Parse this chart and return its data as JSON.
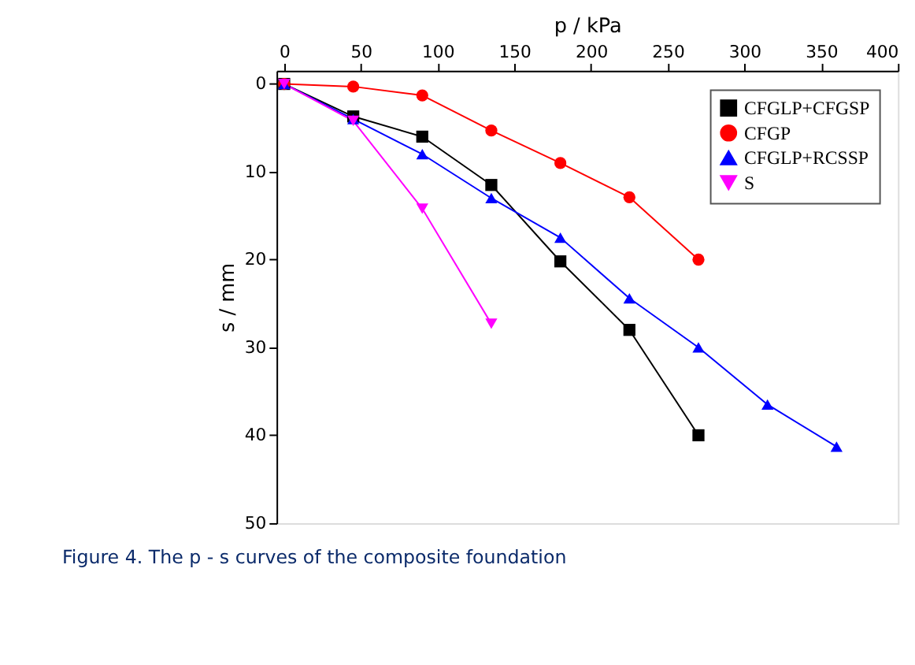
{
  "chart_data": {
    "type": "line",
    "xlabel": "p / kPa",
    "ylabel": "s / mm",
    "xlim": [
      -5,
      400
    ],
    "xticks": [
      0,
      50,
      100,
      150,
      200,
      250,
      300,
      350,
      400
    ],
    "ylim": [
      50,
      -1.5
    ],
    "yticks": [
      0,
      10,
      20,
      30,
      40,
      50
    ],
    "grid": false,
    "legend": "top right",
    "line_style": "solid",
    "annotations": [
      "Figure 4. The p - s curves of the composite foundation"
    ],
    "series": [
      {
        "name": "CFGLP+CFGSP",
        "color": "#000000",
        "marker": "square",
        "x": [
          0,
          45,
          90,
          135,
          180,
          225,
          270
        ],
        "values": [
          0,
          3.7,
          6,
          11.5,
          20.2,
          28,
          40
        ]
      },
      {
        "name": "CFGP",
        "color": "#ff0000",
        "marker": "circle",
        "x": [
          0,
          45,
          90,
          135,
          180,
          225,
          270
        ],
        "values": [
          0,
          0.3,
          1.3,
          5.3,
          9,
          12.9,
          20
        ]
      },
      {
        "name": "CFGLP+RCSSP",
        "color": "#0000ff",
        "marker": "triangle",
        "x": [
          0,
          45,
          90,
          135,
          180,
          225,
          270,
          315,
          360
        ],
        "values": [
          0,
          4,
          8,
          13,
          17.5,
          24.4,
          30,
          36.5,
          41.3
        ]
      },
      {
        "name": "S",
        "color": "#ff00ff",
        "marker": "triangle-down",
        "x": [
          0,
          45,
          90,
          135
        ],
        "values": [
          0,
          4.2,
          14.2,
          27.3
        ]
      }
    ]
  }
}
